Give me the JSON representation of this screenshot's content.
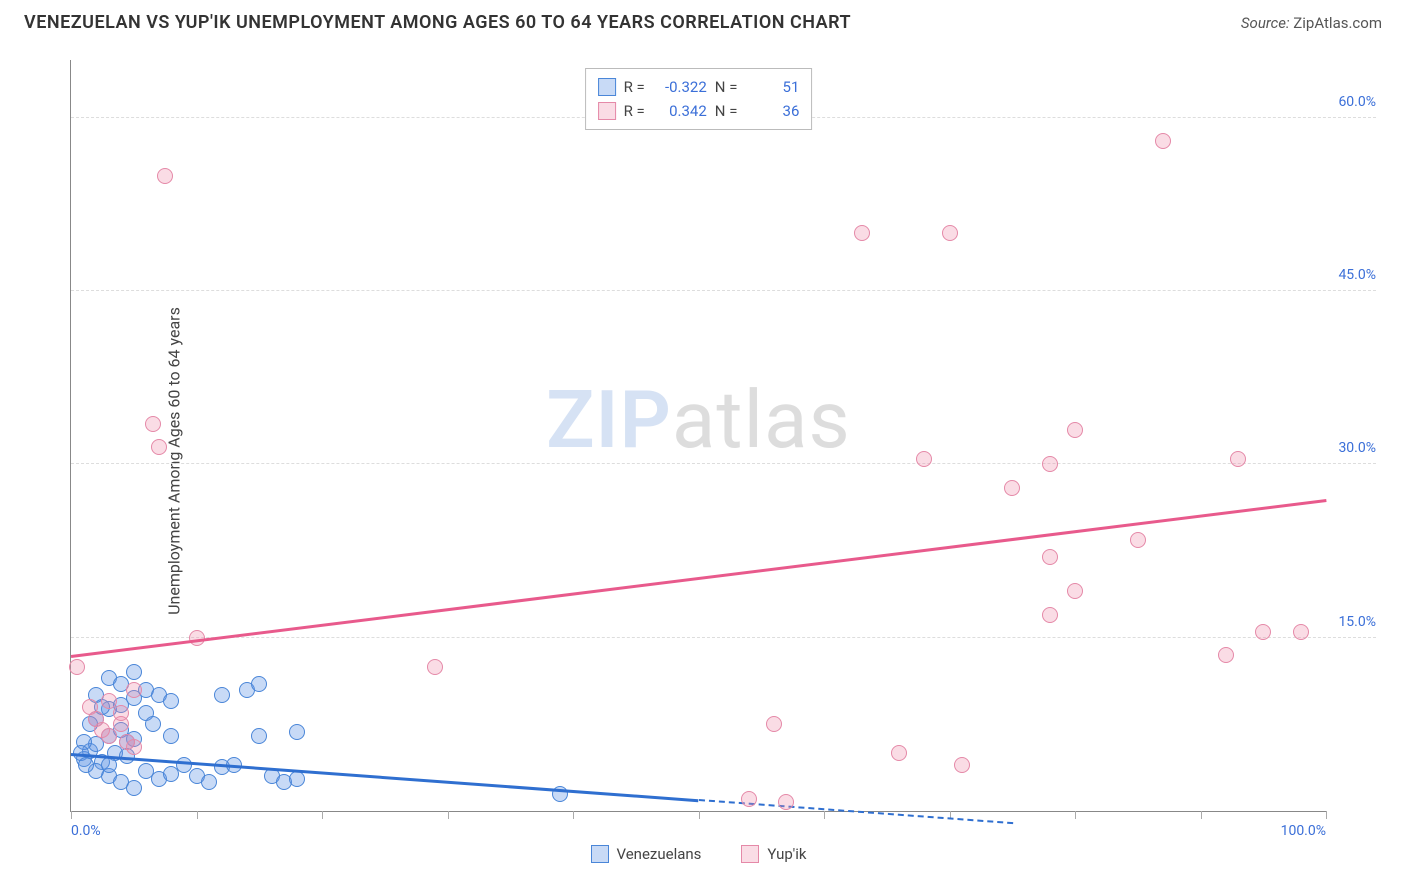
{
  "header": {
    "title": "VENEZUELAN VS YUP'IK UNEMPLOYMENT AMONG AGES 60 TO 64 YEARS CORRELATION CHART",
    "source_label": "Source:",
    "source_value": "ZipAtlas.com"
  },
  "watermark": {
    "part1": "ZIP",
    "part2": "atlas"
  },
  "chart": {
    "type": "scatter",
    "ylabel": "Unemployment Among Ages 60 to 64 years",
    "xlim": [
      0,
      100
    ],
    "ylim": [
      0,
      65
    ],
    "x_ticks": [
      0,
      10,
      20,
      30,
      40,
      50,
      60,
      70,
      80,
      90,
      100
    ],
    "x_tick_labels": {
      "0": "0.0%",
      "100": "100.0%"
    },
    "y_gridlines": [
      15,
      30,
      45,
      60
    ],
    "y_tick_labels": {
      "15": "15.0%",
      "30": "30.0%",
      "45": "45.0%",
      "60": "60.0%"
    },
    "grid_color": "#dddddd",
    "axis_color": "#888888",
    "tick_label_color": "#3b6fd8",
    "background_color": "#ffffff",
    "marker_radius": 8,
    "marker_border_width": 1.5,
    "trend_line_width": 2.5,
    "series": [
      {
        "name": "Venezuelans",
        "fill_color": "rgba(96,150,230,0.35)",
        "border_color": "#4a86d8",
        "line_color": "#2f6fd0",
        "R": "-0.322",
        "N": "51",
        "trend": {
          "x1": 0,
          "y1": 5.0,
          "x2": 50,
          "y2": 1.0,
          "dash_after_x": 50,
          "x2_dash": 75,
          "y2_dash": -1.0
        },
        "points": [
          [
            1,
            4.5
          ],
          [
            1.5,
            5.2
          ],
          [
            2,
            5.8
          ],
          [
            2.5,
            4.2
          ],
          [
            3,
            6.5
          ],
          [
            3.5,
            5.0
          ],
          [
            4,
            7.0
          ],
          [
            4.5,
            4.8
          ],
          [
            5,
            6.2
          ],
          [
            2,
            8.0
          ],
          [
            3,
            8.8
          ],
          [
            4,
            9.2
          ],
          [
            5,
            9.8
          ],
          [
            6,
            8.5
          ],
          [
            3,
            3.0
          ],
          [
            4,
            2.5
          ],
          [
            5,
            2.0
          ],
          [
            6,
            3.5
          ],
          [
            7,
            2.8
          ],
          [
            8,
            3.2
          ],
          [
            9,
            4.0
          ],
          [
            8,
            6.5
          ],
          [
            6,
            10.5
          ],
          [
            7,
            10.0
          ],
          [
            8,
            9.5
          ],
          [
            10,
            3.0
          ],
          [
            11,
            2.5
          ],
          [
            12,
            3.8
          ],
          [
            12,
            10.0
          ],
          [
            13,
            4.0
          ],
          [
            15,
            6.5
          ],
          [
            16,
            3.0
          ],
          [
            17,
            2.5
          ],
          [
            18,
            2.8
          ],
          [
            18,
            6.8
          ],
          [
            14,
            10.5
          ],
          [
            15,
            11.0
          ],
          [
            2,
            10.0
          ],
          [
            3,
            11.5
          ],
          [
            4,
            11.0
          ],
          [
            5,
            12.0
          ],
          [
            39,
            1.5
          ],
          [
            1,
            6.0
          ],
          [
            2,
            3.5
          ],
          [
            3,
            4.0
          ],
          [
            1.5,
            7.5
          ],
          [
            2.5,
            9.0
          ],
          [
            0.8,
            5.0
          ],
          [
            1.2,
            4.0
          ],
          [
            4.5,
            6.0
          ],
          [
            6.5,
            7.5
          ]
        ]
      },
      {
        "name": "Yup'ik",
        "fill_color": "rgba(240,140,170,0.30)",
        "border_color": "#e589a8",
        "line_color": "#e85a8c",
        "R": "0.342",
        "N": "36",
        "trend": {
          "x1": 0,
          "y1": 13.5,
          "x2": 100,
          "y2": 27.0
        },
        "points": [
          [
            0.5,
            12.5
          ],
          [
            2,
            8.0
          ],
          [
            3,
            9.5
          ],
          [
            4,
            7.5
          ],
          [
            5,
            10.5
          ],
          [
            3,
            6.5
          ],
          [
            4,
            8.5
          ],
          [
            5,
            5.5
          ],
          [
            7.5,
            55.0
          ],
          [
            6.5,
            33.5
          ],
          [
            7,
            31.5
          ],
          [
            10,
            15.0
          ],
          [
            29,
            12.5
          ],
          [
            54,
            1.0
          ],
          [
            57,
            0.8
          ],
          [
            56,
            7.5
          ],
          [
            66,
            5.0
          ],
          [
            71,
            4.0
          ],
          [
            68,
            30.5
          ],
          [
            75,
            28.0
          ],
          [
            78,
            30.0
          ],
          [
            80,
            33.0
          ],
          [
            63,
            50.0
          ],
          [
            70,
            50.0
          ],
          [
            87,
            58.0
          ],
          [
            80,
            19.0
          ],
          [
            78,
            17.0
          ],
          [
            78,
            22.0
          ],
          [
            85,
            23.5
          ],
          [
            92,
            13.5
          ],
          [
            93,
            30.5
          ],
          [
            95,
            15.5
          ],
          [
            98,
            15.5
          ],
          [
            2.5,
            7.0
          ],
          [
            4.5,
            6.0
          ],
          [
            1.5,
            9.0
          ]
        ]
      }
    ]
  },
  "legend_box": {
    "r_label": "R =",
    "n_label": "N ="
  },
  "bottom_legend": {
    "items": [
      "Venezuelans",
      "Yup'ik"
    ]
  }
}
